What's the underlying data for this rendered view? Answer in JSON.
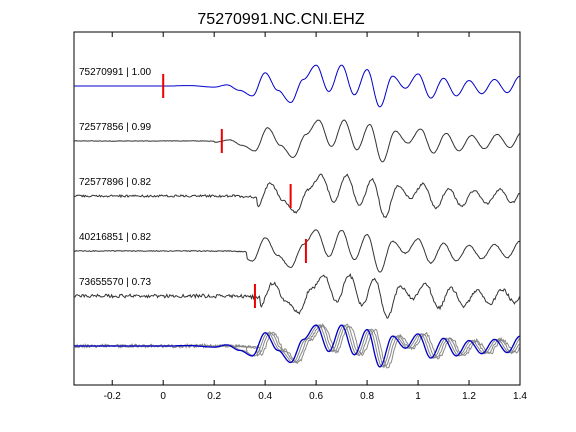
{
  "chart_data": {
    "type": "line",
    "title": "75270991.NC.CNI.EHZ",
    "xlabel": "",
    "ylabel": "",
    "xlim": [
      -0.35,
      1.4
    ],
    "xticks": [
      -0.2,
      0,
      0.2,
      0.4,
      0.6,
      0.8,
      1,
      1.2,
      1.4
    ],
    "xtick_labels": [
      "-0.2",
      "0",
      "0.2",
      "0.4",
      "0.6",
      "0.8",
      "1",
      "1.2",
      "1.4"
    ],
    "grid": false,
    "colors": {
      "template": "#0000cc",
      "trace": "#333333",
      "stack": "#888888",
      "pick": "#ee0000"
    },
    "series": [
      {
        "label": "75270991 | 1.00",
        "pick": 0.0,
        "onset": 0.05,
        "shift": 0.0,
        "noise": 0.0,
        "color_key": "template"
      },
      {
        "label": "72577856 | 0.99",
        "pick": 0.23,
        "onset": 0.2,
        "shift": 0.01,
        "noise": 0.01,
        "color_key": "trace"
      },
      {
        "label": "72577896 | 0.82",
        "pick": 0.5,
        "onset": 0.37,
        "shift": 0.02,
        "noise": 0.05,
        "color_key": "trace"
      },
      {
        "label": "40216851 | 0.82",
        "pick": 0.56,
        "onset": 0.33,
        "shift": 0.0,
        "noise": 0.02,
        "color_key": "trace"
      },
      {
        "label": "73655570 | 0.73",
        "pick": 0.36,
        "onset": 0.38,
        "shift": 0.03,
        "noise": 0.08,
        "color_key": "trace"
      }
    ],
    "waveform": {
      "x": [
        -0.35,
        0.0,
        0.1,
        0.2,
        0.25,
        0.3,
        0.35,
        0.4,
        0.45,
        0.5,
        0.55,
        0.6,
        0.65,
        0.7,
        0.75,
        0.8,
        0.85,
        0.9,
        0.95,
        1.0,
        1.05,
        1.1,
        1.15,
        1.2,
        1.25,
        1.3,
        1.35,
        1.4
      ],
      "y": [
        0,
        0,
        0.02,
        -0.05,
        0.05,
        -0.2,
        -0.45,
        0.6,
        -0.2,
        -0.75,
        0.3,
        0.95,
        -0.25,
        0.95,
        -0.4,
        0.75,
        -0.95,
        0.45,
        -0.1,
        0.55,
        -0.55,
        0.35,
        -0.45,
        0.25,
        -0.35,
        0.3,
        -0.3,
        0.45
      ]
    }
  }
}
